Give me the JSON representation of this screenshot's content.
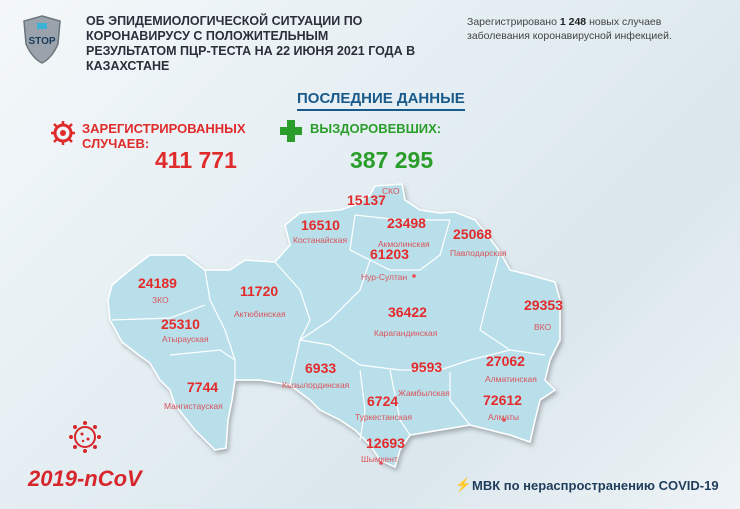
{
  "header": {
    "logo_text": "STOP",
    "title": "ОБ ЭПИДЕМИОЛОГИЧЕСКОЙ СИТУАЦИИ ПО КОРОНАВИРУСУ С ПОЛОЖИТЕЛЬНЫМ РЕЗУЛЬТАТОМ ПЦР-ТЕСТА НА 22 ИЮНЯ 2021 ГОДА В КАЗАХСТАНЕ",
    "note_prefix": "Зарегистрировано",
    "note_count": "1 248",
    "note_suffix": "новых случаев заболевания коронавирусной инфекцией."
  },
  "summary": {
    "heading": "ПОСЛЕДНИЕ ДАННЫЕ",
    "registered_label": "ЗАРЕГИСТРИРОВАННЫХ СЛУЧАЕВ:",
    "registered_value": "411 771",
    "recovered_label": "ВЫЗДОРОВЕВШИХ:",
    "recovered_value": "387 295"
  },
  "regions": [
    {
      "name": "СКО",
      "value": "15137"
    },
    {
      "name": "Костанайская",
      "value": "16510"
    },
    {
      "name": "Акмолинская",
      "value": "23498"
    },
    {
      "name": "Павлодарская",
      "value": "25068"
    },
    {
      "name": "Нур-Султан",
      "value": "61203"
    },
    {
      "name": "ЗКО",
      "value": "24189"
    },
    {
      "name": "Актюбинская",
      "value": "11720"
    },
    {
      "name": "Атырауская",
      "value": "25310"
    },
    {
      "name": "Карагандинская",
      "value": "36422"
    },
    {
      "name": "ВКО",
      "value": "29353"
    },
    {
      "name": "Мангистауская",
      "value": "7744"
    },
    {
      "name": "Кызылординская",
      "value": "6933"
    },
    {
      "name": "Жамбылская",
      "value": "9593"
    },
    {
      "name": "Алматинская",
      "value": "27062"
    },
    {
      "name": "Туркестанская",
      "value": "6724"
    },
    {
      "name": "Алматы",
      "value": "72612"
    },
    {
      "name": "Шымкент",
      "value": "12693"
    }
  ],
  "footer": {
    "virus_label": "2019-nCoV",
    "org": "МВК по нераспространению COVID-19"
  },
  "colors": {
    "map": "#b9dfea",
    "red": "#e02b2b",
    "green": "#2a9d2a"
  }
}
